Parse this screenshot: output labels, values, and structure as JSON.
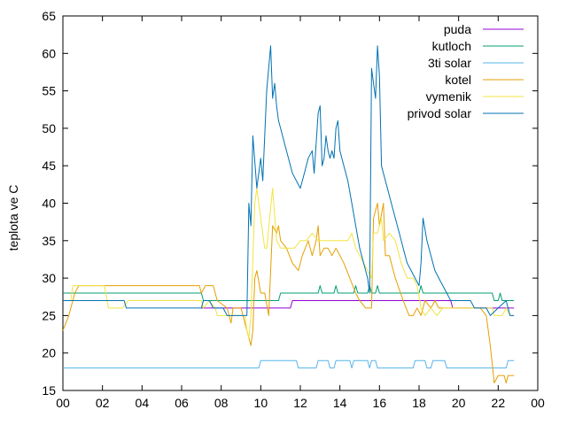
{
  "chart_data": {
    "type": "line",
    "ylabel": "teplota ve C",
    "xlabel": "",
    "ylim": [
      15,
      65
    ],
    "xlim": [
      0,
      24
    ],
    "x_ticks": [
      "00",
      "02",
      "04",
      "06",
      "08",
      "10",
      "12",
      "14",
      "16",
      "18",
      "20",
      "22",
      "00"
    ],
    "y_ticks": [
      "15",
      "20",
      "25",
      "30",
      "35",
      "40",
      "45",
      "50",
      "55",
      "60",
      "65"
    ],
    "legend_position": "top-right",
    "series": [
      {
        "name": "puda",
        "color": "#9400d3",
        "points": [
          [
            7.0,
            26
          ],
          [
            9.2,
            26
          ],
          [
            11.5,
            26
          ],
          [
            11.6,
            27
          ],
          [
            19.6,
            27
          ],
          [
            19.7,
            26
          ],
          [
            22.8,
            26
          ]
        ]
      },
      {
        "name": "kutloch",
        "color": "#009e73",
        "points": [
          [
            0,
            28
          ],
          [
            1.0,
            28
          ],
          [
            1.1,
            28
          ],
          [
            7.0,
            28
          ],
          [
            7.1,
            27
          ],
          [
            9.5,
            27
          ],
          [
            9.6,
            27
          ],
          [
            10.9,
            27
          ],
          [
            11.0,
            28
          ],
          [
            12.9,
            28
          ],
          [
            13.0,
            29
          ],
          [
            13.1,
            28
          ],
          [
            13.7,
            28
          ],
          [
            13.8,
            29
          ],
          [
            13.9,
            28
          ],
          [
            14.7,
            28
          ],
          [
            14.8,
            29
          ],
          [
            14.9,
            28
          ],
          [
            15.4,
            28
          ],
          [
            15.5,
            29
          ],
          [
            15.6,
            28
          ],
          [
            15.8,
            28
          ],
          [
            15.9,
            29
          ],
          [
            16.0,
            28
          ],
          [
            18.0,
            28
          ],
          [
            18.1,
            29
          ],
          [
            18.2,
            28
          ],
          [
            21.7,
            28
          ],
          [
            21.8,
            27
          ],
          [
            22.0,
            27
          ],
          [
            22.1,
            28
          ],
          [
            22.2,
            27
          ],
          [
            22.8,
            27
          ]
        ]
      },
      {
        "name": "3ti solar",
        "color": "#56b4e9",
        "points": [
          [
            0,
            18
          ],
          [
            9.9,
            18
          ],
          [
            10.0,
            19
          ],
          [
            11.8,
            19
          ],
          [
            11.9,
            18
          ],
          [
            12.8,
            18
          ],
          [
            12.9,
            19
          ],
          [
            13.4,
            19
          ],
          [
            13.5,
            18
          ],
          [
            13.7,
            18
          ],
          [
            13.8,
            19
          ],
          [
            14.5,
            19
          ],
          [
            14.6,
            18
          ],
          [
            14.7,
            19
          ],
          [
            15.4,
            19
          ],
          [
            15.5,
            18
          ],
          [
            15.6,
            19
          ],
          [
            15.8,
            19
          ],
          [
            15.9,
            18
          ],
          [
            17.7,
            18
          ],
          [
            17.8,
            19
          ],
          [
            18.3,
            19
          ],
          [
            18.4,
            18
          ],
          [
            18.6,
            18
          ],
          [
            18.7,
            19
          ],
          [
            19.3,
            19
          ],
          [
            19.4,
            18
          ],
          [
            22.4,
            18
          ],
          [
            22.5,
            19
          ],
          [
            22.8,
            19
          ]
        ]
      },
      {
        "name": "kotel",
        "color": "#e69f00",
        "points": [
          [
            0,
            23
          ],
          [
            0.3,
            25
          ],
          [
            0.6,
            28
          ],
          [
            0.8,
            29
          ],
          [
            6.9,
            29
          ],
          [
            7.0,
            28
          ],
          [
            7.2,
            29
          ],
          [
            7.6,
            29
          ],
          [
            7.8,
            27
          ],
          [
            8.3,
            26
          ],
          [
            8.5,
            24
          ],
          [
            8.6,
            26
          ],
          [
            9.0,
            26
          ],
          [
            9.4,
            22
          ],
          [
            9.5,
            21
          ],
          [
            9.6,
            23
          ],
          [
            9.7,
            30
          ],
          [
            9.8,
            31
          ],
          [
            10.0,
            28
          ],
          [
            10.2,
            28
          ],
          [
            10.4,
            25
          ],
          [
            10.6,
            37
          ],
          [
            10.8,
            36
          ],
          [
            10.9,
            37
          ],
          [
            11.0,
            35
          ],
          [
            11.3,
            34
          ],
          [
            11.6,
            32
          ],
          [
            11.9,
            31
          ],
          [
            12.1,
            33
          ],
          [
            12.4,
            35
          ],
          [
            12.6,
            33
          ],
          [
            12.8,
            35
          ],
          [
            12.9,
            37
          ],
          [
            13.0,
            33
          ],
          [
            13.2,
            34
          ],
          [
            13.4,
            34
          ],
          [
            13.6,
            33
          ],
          [
            13.8,
            34
          ],
          [
            14.0,
            33
          ],
          [
            14.2,
            32
          ],
          [
            14.5,
            30
          ],
          [
            14.8,
            28
          ],
          [
            15.0,
            27
          ],
          [
            15.3,
            26
          ],
          [
            15.6,
            26
          ],
          [
            15.7,
            38
          ],
          [
            15.9,
            40
          ],
          [
            16.0,
            37
          ],
          [
            16.2,
            40
          ],
          [
            16.3,
            33
          ],
          [
            16.5,
            33
          ],
          [
            16.8,
            30
          ],
          [
            17.2,
            27
          ],
          [
            17.5,
            25
          ],
          [
            17.7,
            25
          ],
          [
            17.9,
            26
          ],
          [
            18.1,
            25
          ],
          [
            18.3,
            27
          ],
          [
            18.6,
            26
          ],
          [
            18.8,
            27
          ],
          [
            19.0,
            26
          ],
          [
            21.1,
            26
          ],
          [
            21.4,
            25
          ],
          [
            21.6,
            21
          ],
          [
            21.8,
            16
          ],
          [
            22.0,
            17
          ],
          [
            22.3,
            17
          ],
          [
            22.4,
            16
          ],
          [
            22.5,
            17
          ],
          [
            22.8,
            17
          ]
        ]
      },
      {
        "name": "vymenik",
        "color": "#f0e442",
        "points": [
          [
            0,
            27
          ],
          [
            0.4,
            27
          ],
          [
            0.5,
            29
          ],
          [
            1.0,
            29
          ],
          [
            2.1,
            29
          ],
          [
            2.3,
            26
          ],
          [
            3.0,
            26
          ],
          [
            3.3,
            27
          ],
          [
            7.0,
            27
          ],
          [
            7.1,
            26
          ],
          [
            7.4,
            27
          ],
          [
            7.7,
            26
          ],
          [
            7.8,
            25
          ],
          [
            8.4,
            25
          ],
          [
            8.6,
            25
          ],
          [
            8.8,
            25
          ],
          [
            9.0,
            25
          ],
          [
            9.2,
            25
          ],
          [
            9.3,
            23
          ],
          [
            9.4,
            22
          ],
          [
            9.5,
            25
          ],
          [
            9.7,
            40
          ],
          [
            9.8,
            42
          ],
          [
            10.0,
            38
          ],
          [
            10.2,
            34
          ],
          [
            10.3,
            34
          ],
          [
            10.6,
            42
          ],
          [
            10.8,
            35
          ],
          [
            11.0,
            34
          ],
          [
            11.5,
            34
          ],
          [
            11.7,
            34
          ],
          [
            12.0,
            35
          ],
          [
            12.3,
            35
          ],
          [
            12.6,
            36
          ],
          [
            12.9,
            35
          ],
          [
            13.2,
            35
          ],
          [
            13.5,
            35
          ],
          [
            13.8,
            35
          ],
          [
            14.1,
            35
          ],
          [
            14.4,
            35
          ],
          [
            14.6,
            36
          ],
          [
            14.8,
            34
          ],
          [
            15.0,
            33
          ],
          [
            15.2,
            32
          ],
          [
            15.4,
            31
          ],
          [
            15.6,
            30
          ],
          [
            15.7,
            36
          ],
          [
            15.9,
            36
          ],
          [
            16.1,
            38
          ],
          [
            16.2,
            35
          ],
          [
            16.5,
            36
          ],
          [
            16.8,
            35
          ],
          [
            17.1,
            32
          ],
          [
            17.4,
            30
          ],
          [
            17.7,
            30
          ],
          [
            17.9,
            29
          ],
          [
            18.1,
            26
          ],
          [
            18.3,
            25
          ],
          [
            18.6,
            26
          ],
          [
            18.9,
            25
          ],
          [
            19.2,
            26
          ],
          [
            21.7,
            26
          ],
          [
            21.8,
            25
          ],
          [
            22.2,
            25
          ],
          [
            22.4,
            26
          ],
          [
            22.6,
            25
          ],
          [
            22.8,
            25
          ]
        ]
      },
      {
        "name": "privod solar",
        "color": "#0072b2",
        "points": [
          [
            0,
            27
          ],
          [
            1.0,
            27
          ],
          [
            3.1,
            27
          ],
          [
            3.2,
            26
          ],
          [
            7.0,
            26
          ],
          [
            7.1,
            27
          ],
          [
            7.4,
            27
          ],
          [
            7.6,
            26
          ],
          [
            8.1,
            26
          ],
          [
            8.3,
            25
          ],
          [
            9.3,
            25
          ],
          [
            9.4,
            40
          ],
          [
            9.5,
            37
          ],
          [
            9.6,
            49
          ],
          [
            9.8,
            42
          ],
          [
            10.0,
            46
          ],
          [
            10.1,
            43
          ],
          [
            10.3,
            55
          ],
          [
            10.5,
            61
          ],
          [
            10.6,
            54
          ],
          [
            10.7,
            56
          ],
          [
            10.8,
            53
          ],
          [
            10.9,
            51
          ],
          [
            11.0,
            50
          ],
          [
            11.2,
            48
          ],
          [
            11.4,
            46
          ],
          [
            11.6,
            44
          ],
          [
            11.8,
            43
          ],
          [
            12.0,
            42
          ],
          [
            12.2,
            44
          ],
          [
            12.4,
            46
          ],
          [
            12.6,
            47
          ],
          [
            12.7,
            44
          ],
          [
            12.9,
            52
          ],
          [
            13.0,
            53
          ],
          [
            13.1,
            45
          ],
          [
            13.2,
            46
          ],
          [
            13.3,
            49
          ],
          [
            13.4,
            47
          ],
          [
            13.5,
            46
          ],
          [
            13.6,
            47
          ],
          [
            13.7,
            46
          ],
          [
            13.8,
            50
          ],
          [
            13.9,
            51
          ],
          [
            14.0,
            47
          ],
          [
            14.2,
            45
          ],
          [
            14.4,
            43
          ],
          [
            14.6,
            40
          ],
          [
            14.8,
            37
          ],
          [
            15.0,
            34
          ],
          [
            15.2,
            32
          ],
          [
            15.4,
            30
          ],
          [
            15.5,
            28
          ],
          [
            15.6,
            58
          ],
          [
            15.7,
            56
          ],
          [
            15.8,
            54
          ],
          [
            15.9,
            61
          ],
          [
            16.0,
            57
          ],
          [
            16.1,
            45
          ],
          [
            16.2,
            44
          ],
          [
            16.4,
            42
          ],
          [
            16.6,
            40
          ],
          [
            16.8,
            38
          ],
          [
            17.0,
            36
          ],
          [
            17.2,
            34
          ],
          [
            17.4,
            32
          ],
          [
            17.6,
            31
          ],
          [
            17.8,
            30
          ],
          [
            18.0,
            29
          ],
          [
            18.1,
            32
          ],
          [
            18.2,
            38
          ],
          [
            18.4,
            35
          ],
          [
            18.6,
            33
          ],
          [
            18.8,
            31
          ],
          [
            19.0,
            30
          ],
          [
            19.2,
            29
          ],
          [
            19.4,
            28
          ],
          [
            19.6,
            27
          ],
          [
            20.0,
            27
          ],
          [
            20.6,
            27
          ],
          [
            20.8,
            26
          ],
          [
            21.4,
            26
          ],
          [
            21.6,
            25
          ],
          [
            22.0,
            26
          ],
          [
            22.4,
            27
          ],
          [
            22.6,
            25
          ],
          [
            22.8,
            25
          ]
        ]
      }
    ]
  }
}
